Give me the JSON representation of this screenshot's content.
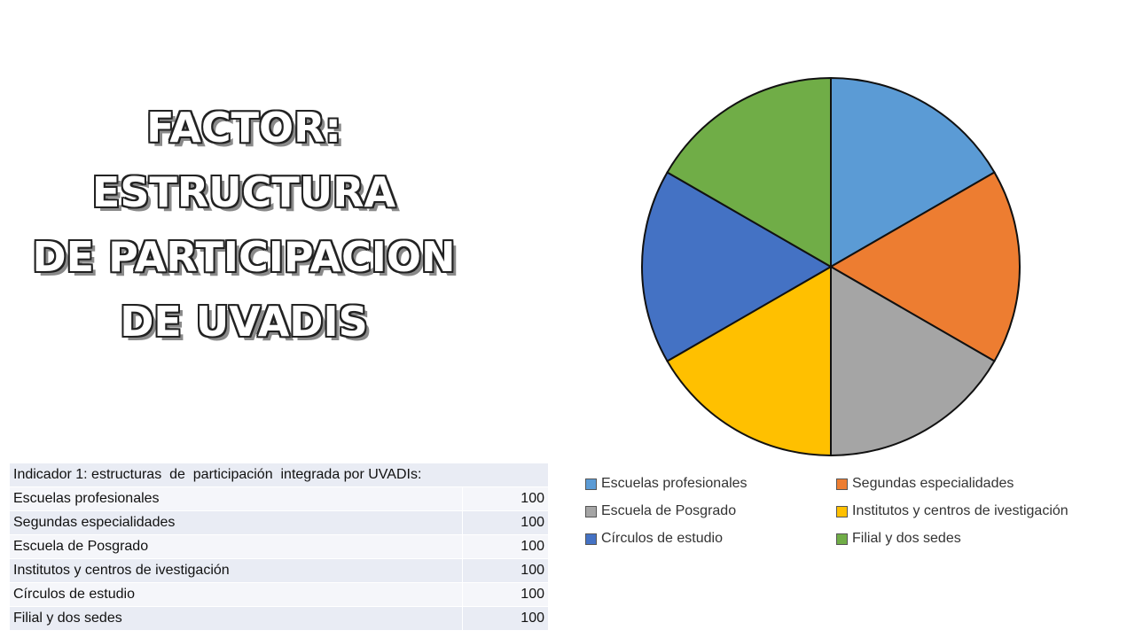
{
  "title": {
    "lines": [
      "FACTOR:",
      "ESTRUCTURA",
      "DE PARTICIPACION",
      "DE UVADIS"
    ]
  },
  "table": {
    "header": "Indicador 1: estructuras  de  participación  integrada por UVADIs:",
    "rows": [
      {
        "label": "Escuelas profesionales",
        "value": "100"
      },
      {
        "label": "Segundas especialidades",
        "value": "100"
      },
      {
        "label": "Escuela de Posgrado",
        "value": "100"
      },
      {
        "label": "Institutos y centros de ivestigación",
        "value": "100"
      },
      {
        "label": "Círculos de estudio",
        "value": "100"
      },
      {
        "label": "Filial y dos sedes",
        "value": "100"
      }
    ]
  },
  "chart_data": {
    "type": "pie",
    "categories": [
      "Escuelas profesionales",
      "Segundas especialidades",
      "Escuela de Posgrado",
      "Institutos y centros de ivestigación",
      "Círculos de estudio",
      "Filial y dos sedes"
    ],
    "values": [
      100,
      100,
      100,
      100,
      100,
      100
    ],
    "colors": [
      "#5b9bd5",
      "#ed7d31",
      "#a5a5a5",
      "#ffc000",
      "#4472c4",
      "#70ad47"
    ],
    "legend": [
      "Escuelas profesionales",
      "Segundas especialidades",
      "Escuela de Posgrado",
      "Institutos y centros de ivestigación",
      "Círculos de estudio",
      "Filial y dos sedes"
    ],
    "legend_position": "bottom"
  }
}
